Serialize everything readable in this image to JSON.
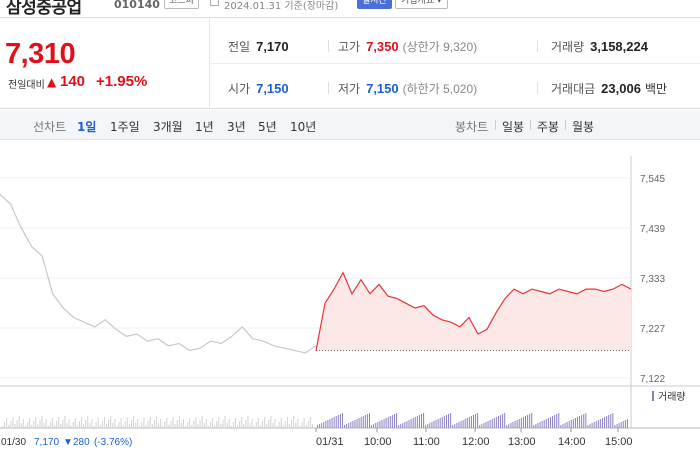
{
  "header": {
    "stock_name": "삼성중공업",
    "stock_code": "010140",
    "market": "코스피",
    "date_text": "2024.01.31 기준(장마감)",
    "realtime_label": "실시간",
    "company_label": "기업개요 ▾"
  },
  "quote": {
    "price": "7,310",
    "change_label": "전일대비",
    "change_arrow": "▲",
    "change_value": "140",
    "change_pct": "+1.95%",
    "prev_close_label": "전일",
    "prev_close": "7,170",
    "high_label": "고가",
    "high": "7,350",
    "upper_limit": "(상한가 9,320)",
    "volume_label": "거래량",
    "volume": "3,158,224",
    "open_label": "시가",
    "open": "7,150",
    "low_label": "저가",
    "low": "7,150",
    "lower_limit": "(하한가 5,020)",
    "amount_label": "거래대금",
    "amount": "23,006",
    "amount_unit": "백만"
  },
  "toolbar": {
    "line_chart_label": "선차트",
    "periods": [
      "1일",
      "1주일",
      "3개월",
      "1년",
      "3년",
      "5년",
      "10년"
    ],
    "active_period": "1일",
    "candle_label": "봉차트",
    "candles": [
      "일봉",
      "주봉",
      "월봉"
    ]
  },
  "chart_data": {
    "type": "line",
    "y_ticks": [
      "7,545",
      "7,439",
      "7,333",
      "7,227",
      "7,122"
    ],
    "ylim": [
      7122,
      7545
    ],
    "x_labels": [
      "01/31",
      "10:00",
      "11:00",
      "12:00",
      "13:00",
      "14:00",
      "15:00"
    ],
    "prev_day": {
      "name": "01/30",
      "color": "#c8c8c8",
      "values": [
        7510,
        7490,
        7440,
        7400,
        7380,
        7300,
        7270,
        7250,
        7240,
        7230,
        7245,
        7225,
        7210,
        7215,
        7200,
        7205,
        7190,
        7195,
        7180,
        7185,
        7200,
        7195,
        7210,
        7230,
        7205,
        7200,
        7190,
        7185,
        7180,
        7175,
        7190
      ]
    },
    "today": {
      "name": "01/31",
      "color": "#e8333a",
      "fill": "#fde8e8",
      "values": [
        7180,
        7280,
        7310,
        7345,
        7300,
        7330,
        7300,
        7320,
        7295,
        7290,
        7280,
        7270,
        7275,
        7255,
        7245,
        7240,
        7230,
        7250,
        7215,
        7225,
        7260,
        7290,
        7310,
        7300,
        7310,
        7305,
        7300,
        7310,
        7305,
        7300,
        7310,
        7310,
        7305,
        7310,
        7320,
        7310
      ]
    },
    "volume_label": "거래량",
    "footer_prev": {
      "date": "01/30",
      "close": "7,170",
      "arrow": "▼",
      "change": "280",
      "pct": "(-3.76%)"
    }
  }
}
